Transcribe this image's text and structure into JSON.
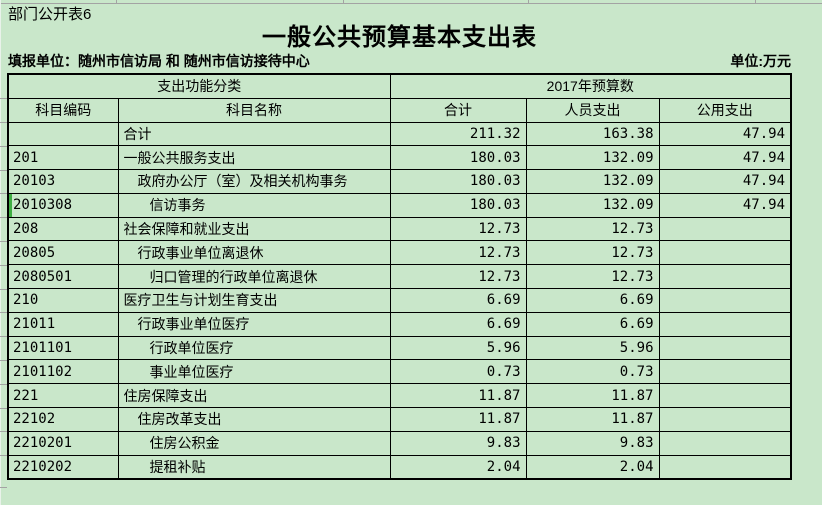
{
  "sheet": {
    "corner_label": "部门公开表6",
    "title": "一般公共预算基本支出表",
    "reporting_unit": "填报单位：随州市信访局 和 随州市信访接待中心",
    "unit_note": "单位:万元"
  },
  "table": {
    "header": {
      "group_left": "支出功能分类",
      "group_right": "2017年预算数",
      "columns": [
        "科目编码",
        "科目名称",
        "合计",
        "人员支出",
        "公用支出"
      ]
    },
    "rows": [
      {
        "code": "",
        "name": "合计",
        "indent": 1,
        "total": "211.32",
        "personnel": "163.38",
        "public": "47.94",
        "selected": false
      },
      {
        "code": "201",
        "name": "一般公共服务支出",
        "indent": 1,
        "total": "180.03",
        "personnel": "132.09",
        "public": "47.94",
        "selected": false
      },
      {
        "code": "20103",
        "name": "政府办公厅（室）及相关机构事务",
        "indent": 2,
        "total": "180.03",
        "personnel": "132.09",
        "public": "47.94",
        "selected": false
      },
      {
        "code": "2010308",
        "name": "信访事务",
        "indent": 3,
        "total": "180.03",
        "personnel": "132.09",
        "public": "47.94",
        "selected": true
      },
      {
        "code": "208",
        "name": "社会保障和就业支出",
        "indent": 1,
        "total": "12.73",
        "personnel": "12.73",
        "public": "",
        "selected": false
      },
      {
        "code": "20805",
        "name": "行政事业单位离退休",
        "indent": 2,
        "total": "12.73",
        "personnel": "12.73",
        "public": "",
        "selected": false
      },
      {
        "code": "2080501",
        "name": "归口管理的行政单位离退休",
        "indent": 3,
        "total": "12.73",
        "personnel": "12.73",
        "public": "",
        "selected": false
      },
      {
        "code": "210",
        "name": "医疗卫生与计划生育支出",
        "indent": 1,
        "total": "6.69",
        "personnel": "6.69",
        "public": "",
        "selected": false
      },
      {
        "code": "21011",
        "name": "行政事业单位医疗",
        "indent": 2,
        "total": "6.69",
        "personnel": "6.69",
        "public": "",
        "selected": false
      },
      {
        "code": "2101101",
        "name": "行政单位医疗",
        "indent": 3,
        "total": "5.96",
        "personnel": "5.96",
        "public": "",
        "selected": false
      },
      {
        "code": "2101102",
        "name": "事业单位医疗",
        "indent": 3,
        "total": "0.73",
        "personnel": "0.73",
        "public": "",
        "selected": false
      },
      {
        "code": "221",
        "name": "住房保障支出",
        "indent": 1,
        "total": "11.87",
        "personnel": "11.87",
        "public": "",
        "selected": false
      },
      {
        "code": "22102",
        "name": "住房改革支出",
        "indent": 2,
        "total": "11.87",
        "personnel": "11.87",
        "public": "",
        "selected": false
      },
      {
        "code": "2210201",
        "name": "住房公积金",
        "indent": 3,
        "total": "9.83",
        "personnel": "9.83",
        "public": "",
        "selected": false
      },
      {
        "code": "2210202",
        "name": "提租补贴",
        "indent": 3,
        "total": "2.04",
        "personnel": "2.04",
        "public": "",
        "selected": false
      }
    ]
  },
  "colors": {
    "background": "#c9e7ca",
    "gridline": "#a3a3a3",
    "table_border": "#000000",
    "selection_green": "#3fae43"
  }
}
